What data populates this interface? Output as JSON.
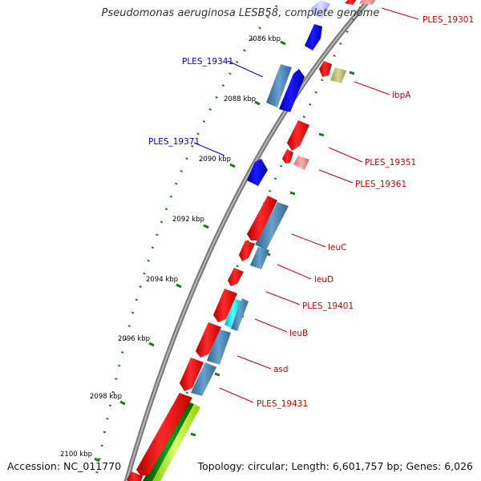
{
  "title": "Pseudomonas aeruginosa LESB58, complete genome",
  "footer": {
    "accession_label": "Accession:",
    "accession": "NC_011770",
    "topology_label": "Topology:",
    "topology": "circular;",
    "length_label": "Length:",
    "length": "6,601,757 bp;",
    "genes_label": "Genes:",
    "genes": "6,026"
  },
  "colors": {
    "backbone": "#808080",
    "tick": "#008000",
    "forward_gene": "#ff0000",
    "reverse_gene": "#0000ff",
    "domain": "#4682b4",
    "label_forward": "#cc0000",
    "label_reverse": "#0000cc"
  },
  "scale_labels": [
    "2086 kbp",
    "2088 kbp",
    "2090 kbp",
    "2092 kbp",
    "2094 kbp",
    "2096 kbp",
    "2098 kbp",
    "2100 kbp"
  ],
  "gene_labels": [
    {
      "name": "PLES_19301",
      "strand": "forward"
    },
    {
      "name": "PLES_19341",
      "strand": "reverse"
    },
    {
      "name": "ibpA",
      "strand": "forward"
    },
    {
      "name": "PLES_19371",
      "strand": "reverse"
    },
    {
      "name": "PLES_19351",
      "strand": "forward"
    },
    {
      "name": "PLES_19361",
      "strand": "forward"
    },
    {
      "name": "leuC",
      "strand": "forward"
    },
    {
      "name": "leuD",
      "strand": "forward"
    },
    {
      "name": "PLES_19401",
      "strand": "forward"
    },
    {
      "name": "leuB",
      "strand": "forward"
    },
    {
      "name": "asd",
      "strand": "forward"
    },
    {
      "name": "PLES_19431",
      "strand": "forward"
    }
  ]
}
